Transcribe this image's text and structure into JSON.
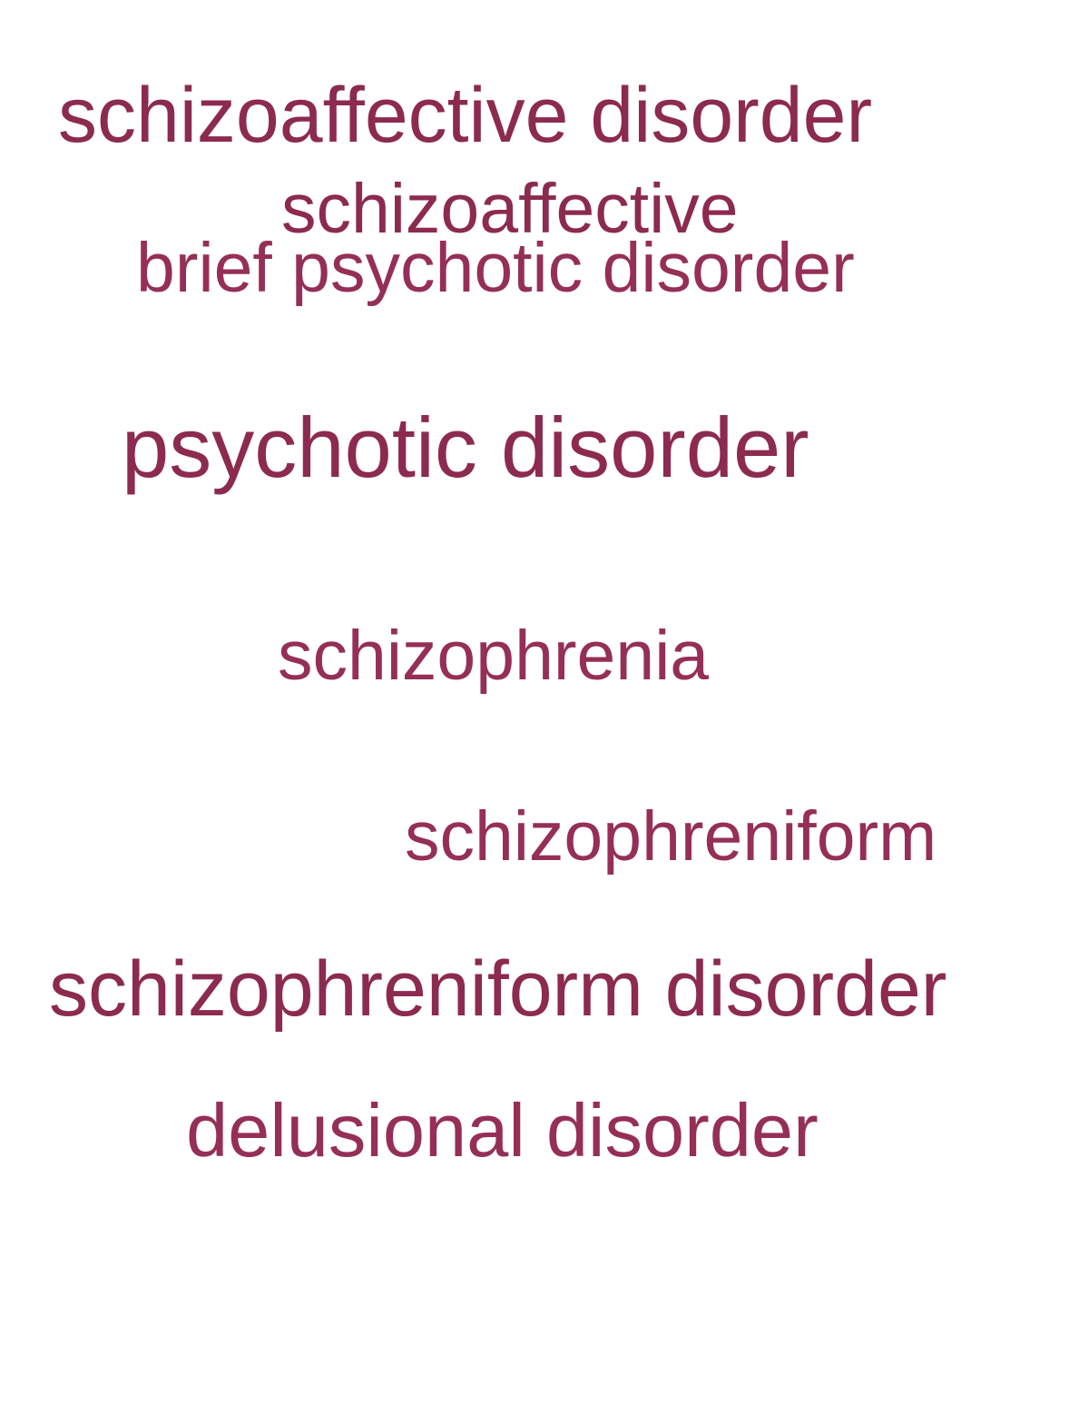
{
  "word_cloud": {
    "colors": {
      "primary": "#8c2a50",
      "secondary": "#952f57"
    },
    "terms": [
      {
        "text": "schizoaffective disorder",
        "color": "#8c2a50"
      },
      {
        "text": "schizoaffective",
        "color": "#8c2a50"
      },
      {
        "text": "brief psychotic disorder",
        "color": "#952f57"
      },
      {
        "text": "psychotic disorder",
        "color": "#8c2a50"
      },
      {
        "text": "schizophrenia",
        "color": "#952f57"
      },
      {
        "text": "schizophreniform",
        "color": "#952f57"
      },
      {
        "text": "schizophreniform disorder",
        "color": "#8c2a50"
      },
      {
        "text": "delusional disorder",
        "color": "#952f57"
      }
    ]
  }
}
